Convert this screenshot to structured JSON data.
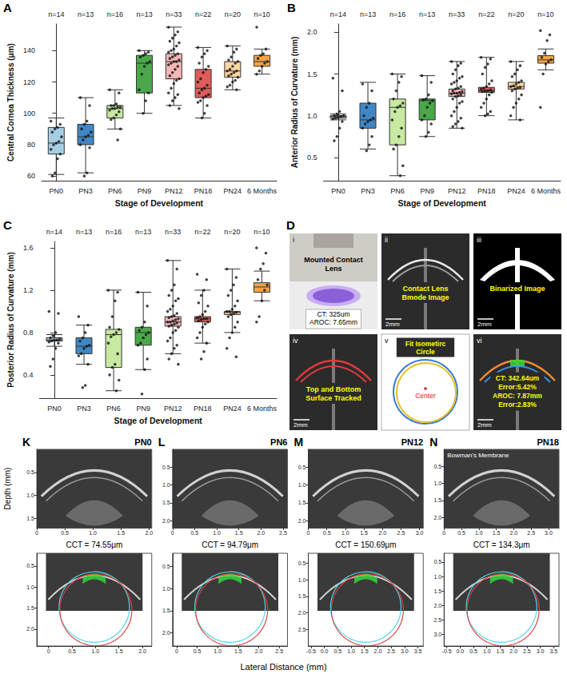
{
  "chart_data": [
    {
      "type": "boxplot",
      "panel": "A",
      "x_label": "Stage of Development",
      "y_label": "Central Cornea Thickness (μm)",
      "categories": [
        "PN0",
        "PN3",
        "PN6",
        "PN9",
        "PN12",
        "PN18",
        "PN24",
        "6 Months"
      ],
      "n_labels": [
        "n=14",
        "n=13",
        "n=16",
        "n=13",
        "n=33",
        "n=22",
        "n=20",
        "n=10"
      ],
      "colors": [
        "#a6cee3",
        "#3f87c4",
        "#c7e9a0",
        "#4aa84a",
        "#f7b6b6",
        "#e25b5b",
        "#fdd7a0",
        "#f5a343"
      ],
      "boxes": [
        [
          61,
          74,
          81,
          91,
          97
        ],
        [
          62,
          80,
          85,
          93,
          110
        ],
        [
          90,
          97,
          103,
          105,
          115
        ],
        [
          100,
          113,
          132,
          137,
          140
        ],
        [
          105,
          122,
          133,
          138,
          155
        ],
        [
          97,
          110,
          116,
          128,
          142
        ],
        [
          115,
          123,
          127,
          133,
          143
        ],
        [
          125,
          130,
          133,
          137,
          141
        ]
      ],
      "points": [
        [
          95,
          93,
          91,
          90,
          88,
          85,
          82,
          81,
          80,
          77,
          74,
          71,
          62,
          60
        ],
        [
          110,
          105,
          95,
          93,
          90,
          88,
          86,
          85,
          83,
          80,
          78,
          62,
          60
        ],
        [
          115,
          113,
          106,
          105,
          105,
          104,
          104,
          103,
          103,
          102,
          101,
          99,
          97,
          96,
          90,
          83
        ],
        [
          140,
          139,
          138,
          137,
          136,
          133,
          132,
          130,
          125,
          115,
          113,
          108,
          100
        ],
        [
          155,
          152,
          150,
          148,
          146,
          145,
          143,
          141,
          140,
          139,
          138,
          137,
          136,
          135,
          134,
          133,
          133,
          132,
          131,
          130,
          128,
          126,
          124,
          122,
          121,
          119,
          116,
          113,
          112,
          110,
          108,
          105,
          103
        ],
        [
          142,
          140,
          138,
          136,
          132,
          130,
          128,
          126,
          122,
          120,
          118,
          116,
          115,
          113,
          112,
          111,
          110,
          108,
          107,
          105,
          100,
          97
        ],
        [
          143,
          141,
          139,
          136,
          134,
          133,
          132,
          130,
          128,
          127,
          127,
          126,
          125,
          124,
          123,
          121,
          120,
          118,
          117,
          115
        ],
        [
          155,
          141,
          138,
          137,
          135,
          133,
          132,
          130,
          127,
          125
        ]
      ],
      "ylim": [
        57,
        157
      ],
      "yticks": [
        60,
        80,
        100,
        120,
        140
      ],
      "grid": false
    },
    {
      "type": "boxplot",
      "panel": "B",
      "x_label": "Stage of Development",
      "y_label": "Anterior Radius of Curvature (mm)",
      "categories": [
        "PN0",
        "PN3",
        "PN6",
        "PN9",
        "PN12",
        "PN18",
        "PN24",
        "6 Months"
      ],
      "n_labels": [
        "n=14",
        "n=13",
        "n=16",
        "n=13",
        "n=33",
        "n=22",
        "n=20",
        "n=10"
      ],
      "colors": [
        "#a6cee3",
        "#3f87c4",
        "#c7e9a0",
        "#4aa84a",
        "#f7b6b6",
        "#e25b5b",
        "#fdd7a0",
        "#f5a343"
      ],
      "boxes": [
        [
          0.95,
          0.97,
          0.99,
          1.0,
          1.02
        ],
        [
          0.6,
          0.85,
          0.95,
          1.15,
          1.4
        ],
        [
          0.28,
          0.65,
          1.1,
          1.2,
          1.5
        ],
        [
          0.75,
          0.95,
          1.18,
          1.2,
          1.48
        ],
        [
          0.85,
          1.23,
          1.27,
          1.32,
          1.65
        ],
        [
          1.0,
          1.28,
          1.3,
          1.34,
          1.7
        ],
        [
          0.95,
          1.32,
          1.35,
          1.4,
          1.65
        ],
        [
          1.55,
          1.63,
          1.67,
          1.72,
          1.8
        ]
      ],
      "points": [
        [
          1.45,
          1.3,
          1.05,
          1.02,
          1.0,
          1.0,
          0.99,
          0.98,
          0.97,
          0.96,
          0.93,
          0.85,
          0.75,
          0.7
        ],
        [
          1.38,
          1.3,
          1.15,
          1.1,
          1.0,
          0.97,
          0.95,
          0.93,
          0.9,
          0.85,
          0.75,
          0.65,
          0.58
        ],
        [
          1.5,
          1.47,
          1.4,
          1.3,
          1.2,
          1.15,
          1.12,
          1.1,
          1.05,
          0.95,
          0.85,
          0.75,
          0.65,
          0.6,
          0.4,
          0.28
        ],
        [
          1.48,
          1.4,
          1.25,
          1.2,
          1.19,
          1.18,
          1.15,
          1.1,
          1.0,
          0.95,
          0.9,
          0.8,
          0.75
        ],
        [
          1.65,
          1.63,
          1.6,
          1.55,
          1.5,
          1.47,
          1.45,
          1.42,
          1.4,
          1.38,
          1.35,
          1.33,
          1.32,
          1.3,
          1.29,
          1.28,
          1.27,
          1.27,
          1.26,
          1.25,
          1.24,
          1.23,
          1.2,
          1.17,
          1.15,
          1.1,
          1.05,
          1.0,
          0.97,
          0.93,
          0.9,
          0.87,
          0.85
        ],
        [
          1.7,
          1.68,
          1.62,
          1.58,
          1.5,
          1.42,
          1.38,
          1.35,
          1.33,
          1.32,
          1.31,
          1.3,
          1.3,
          1.29,
          1.28,
          1.25,
          1.2,
          1.15,
          1.1,
          1.05,
          1.02,
          1.0
        ],
        [
          1.65,
          1.6,
          1.55,
          1.5,
          1.47,
          1.42,
          1.4,
          1.38,
          1.36,
          1.35,
          1.34,
          1.33,
          1.32,
          1.3,
          1.25,
          1.2,
          1.15,
          1.1,
          1.0,
          0.95
        ],
        [
          2.02,
          1.97,
          1.9,
          1.75,
          1.7,
          1.67,
          1.65,
          1.62,
          1.5,
          1.1
        ]
      ],
      "ylim": [
        0.22,
        2.1
      ],
      "yticks": [
        0.5,
        {
          "value": 1,
          "label": "1.0"
        },
        1.5,
        {
          "value": 2,
          "label": "2.0"
        }
      ],
      "grid": false
    },
    {
      "type": "boxplot",
      "panel": "C",
      "x_label": "Stage of Development",
      "y_label": "Posterior Radius of Curvature (mm)",
      "categories": [
        "PN0",
        "PN3",
        "PN6",
        "PN9",
        "PN12",
        "PN18",
        "PN24",
        "6 Months"
      ],
      "n_labels": [
        "n=14",
        "n=13",
        "n=16",
        "n=13",
        "n=33",
        "n=22",
        "n=20",
        "n=10"
      ],
      "colors": [
        "#a6cee3",
        "#3f87c4",
        "#c7e9a0",
        "#4aa84a",
        "#f7b6b6",
        "#e25b5b",
        "#fdd7a0",
        "#f5a343"
      ],
      "boxes": [
        [
          0.67,
          0.72,
          0.73,
          0.75,
          0.78
        ],
        [
          0.5,
          0.6,
          0.67,
          0.75,
          0.87
        ],
        [
          0.25,
          0.47,
          0.78,
          0.83,
          1.2
        ],
        [
          0.45,
          0.68,
          0.8,
          0.85,
          1.18
        ],
        [
          0.6,
          0.86,
          0.9,
          0.95,
          1.48
        ],
        [
          0.7,
          0.9,
          0.93,
          0.95,
          1.2
        ],
        [
          0.8,
          0.97,
          0.99,
          1.0,
          1.4
        ],
        [
          1.1,
          1.18,
          1.23,
          1.27,
          1.38
        ]
      ],
      "points": [
        [
          1.0,
          0.98,
          0.8,
          0.77,
          0.75,
          0.74,
          0.73,
          0.73,
          0.72,
          0.71,
          0.7,
          0.65,
          0.55,
          0.48
        ],
        [
          0.95,
          0.87,
          0.8,
          0.75,
          0.72,
          0.68,
          0.67,
          0.65,
          0.6,
          0.58,
          0.5,
          0.3,
          0.28
        ],
        [
          1.2,
          1.18,
          1.1,
          0.95,
          0.85,
          0.83,
          0.8,
          0.78,
          0.76,
          0.7,
          0.6,
          0.5,
          0.47,
          0.4,
          0.35,
          0.25
        ],
        [
          1.18,
          1.05,
          0.9,
          0.85,
          0.82,
          0.8,
          0.78,
          0.75,
          0.7,
          0.68,
          0.55,
          0.45,
          0.22
        ],
        [
          1.48,
          1.4,
          1.25,
          1.2,
          1.15,
          1.12,
          1.1,
          1.05,
          1.02,
          1.0,
          0.98,
          0.96,
          0.95,
          0.94,
          0.93,
          0.92,
          0.91,
          0.9,
          0.9,
          0.89,
          0.88,
          0.87,
          0.86,
          0.85,
          0.82,
          0.8,
          0.75,
          0.72,
          0.68,
          0.65,
          0.6,
          0.55,
          0.5
        ],
        [
          1.35,
          1.3,
          1.2,
          1.15,
          1.08,
          1.05,
          1.0,
          0.97,
          0.95,
          0.94,
          0.93,
          0.93,
          0.92,
          0.91,
          0.9,
          0.88,
          0.85,
          0.8,
          0.75,
          0.7,
          0.62,
          0.55
        ],
        [
          1.4,
          1.32,
          1.25,
          1.2,
          1.15,
          1.1,
          1.05,
          1.02,
          1.0,
          1.0,
          0.99,
          0.98,
          0.97,
          0.95,
          0.9,
          0.85,
          0.8,
          0.75,
          0.65,
          0.57
        ],
        [
          1.6,
          1.55,
          1.45,
          1.4,
          1.3,
          1.25,
          1.2,
          1.1,
          0.95,
          0.9
        ]
      ],
      "ylim": [
        0.18,
        1.66
      ],
      "yticks": [
        0.4,
        0.8,
        1.2,
        1.6
      ],
      "grid": false
    }
  ],
  "panel_d": {
    "letter": "D",
    "cells": [
      {
        "id": "i",
        "caption": "Mounted Contact Lens",
        "measure": [
          "CT: 325um",
          "AROC: 7.65mm"
        ]
      },
      {
        "id": "ii",
        "caption": "Contact Lens Bmode Image",
        "scale": "2mm"
      },
      {
        "id": "iii",
        "caption": "Binarized Image",
        "scale": "2mm"
      },
      {
        "id": "iv",
        "caption": "Top and Bottom Surface Tracked",
        "scale": "2mm"
      },
      {
        "id": "v",
        "caption": "Fit Isometirc Circle",
        "center_label": "Center"
      },
      {
        "id": "vi",
        "measure": [
          "CT: 342.64um",
          "Error:5.42%",
          "AROC: 7.87mm",
          "Error:2.83%"
        ],
        "scale": "2mm"
      }
    ]
  },
  "oct_figure": {
    "y_title": "Depth (mm)",
    "x_title": "Lateral Distance (mm)",
    "panels": [
      {
        "letter": "K",
        "stage": "PN0",
        "cct": "CCT = 74.55μm",
        "top": {
          "xlim": [
            0,
            2.05
          ],
          "xticks": [
            0,
            0.5,
            {
              "value": 1,
              "label": "1.0"
            },
            1.5,
            {
              "value": 2,
              "label": "2.0"
            }
          ],
          "ylim": [
            0,
            1.7
          ],
          "yticks": [
            0.5,
            {
              "value": 1,
              "label": "1.0"
            },
            1.5
          ]
        },
        "bottom": {
          "xlim": [
            -0.25,
            2.2
          ],
          "xticks": [
            0,
            0.5,
            {
              "value": 1,
              "label": "1.0"
            },
            1.5,
            {
              "value": 2,
              "label": "2.0"
            }
          ],
          "ylim": [
            0.2,
            2.4
          ],
          "yticks": [
            0.5,
            {
              "value": 1,
              "label": "1.0"
            },
            1.5,
            {
              "value": 2,
              "label": "2.0"
            }
          ]
        }
      },
      {
        "letter": "L",
        "stage": "PN6",
        "cct": "CCT = 94.79μm",
        "top": {
          "xlim": [
            0,
            2.6
          ],
          "xticks": [
            0,
            0.5,
            {
              "value": 1,
              "label": "1.0"
            },
            1.5,
            {
              "value": 2,
              "label": "2.0"
            },
            2.5
          ],
          "ylim": [
            0,
            2.2
          ],
          "yticks": [
            0.5,
            {
              "value": 1,
              "label": "1.0"
            },
            1.5,
            {
              "value": 2,
              "label": "2.0"
            }
          ]
        },
        "bottom": {
          "xlim": [
            -0.1,
            2.7
          ],
          "xticks": [
            0,
            0.5,
            {
              "value": 1,
              "label": "1.0"
            },
            1.5,
            {
              "value": 2,
              "label": "2.0"
            },
            2.5
          ],
          "ylim": [
            0.2,
            2.3
          ],
          "yticks": [
            0.5,
            {
              "value": 1,
              "label": "1.0"
            },
            1.5,
            {
              "value": 2,
              "label": "2.0"
            }
          ]
        }
      },
      {
        "letter": "M",
        "stage": "PN12",
        "cct": "CCT = 150.69μm",
        "top": {
          "xlim": [
            0,
            3.1
          ],
          "xticks": [
            0,
            0.5,
            {
              "value": 1,
              "label": "1.0"
            },
            1.5,
            {
              "value": 2,
              "label": "2.0"
            },
            2.5,
            {
              "value": 3,
              "label": "3.0"
            }
          ],
          "ylim": [
            0,
            2.2
          ],
          "yticks": [
            0.5,
            {
              "value": 1,
              "label": "1.0"
            },
            1.5,
            {
              "value": 2,
              "label": "2.0"
            }
          ]
        },
        "bottom": {
          "xlim": [
            -0.6,
            3.7
          ],
          "xticks": [
            -0.5,
            {
              "value": 0,
              "label": "0.0"
            },
            0.5,
            {
              "value": 1,
              "label": "1.0"
            },
            1.5,
            {
              "value": 2,
              "label": "2.0"
            },
            2.5,
            {
              "value": 3,
              "label": "3.0"
            },
            3.5
          ],
          "ylim": [
            0.2,
            3.0
          ],
          "yticks": [
            0.5,
            {
              "value": 1,
              "label": "1.0"
            },
            1.5,
            {
              "value": 2,
              "label": "2.0"
            },
            2.5
          ]
        }
      },
      {
        "letter": "N",
        "stage": "PN18",
        "cct": "CCT = 134.3μm",
        "annotation": "Bowman's Membrane",
        "top": {
          "xlim": [
            0,
            3.3
          ],
          "xticks": [
            0,
            0.5,
            {
              "value": 1,
              "label": "1.0"
            },
            1.5,
            {
              "value": 2,
              "label": "2.0"
            },
            2.5,
            {
              "value": 3,
              "label": "3.0"
            }
          ],
          "ylim": [
            0,
            2.3
          ],
          "yticks": [
            0.5,
            {
              "value": 1,
              "label": "1.0"
            },
            1.5,
            {
              "value": 2,
              "label": "2.0"
            }
          ]
        },
        "bottom": {
          "xlim": [
            -0.6,
            3.7
          ],
          "xticks": [
            -0.5,
            {
              "value": 0,
              "label": "0.0"
            },
            0.5,
            {
              "value": 1,
              "label": "1.0"
            },
            1.5,
            {
              "value": 2,
              "label": "2.0"
            },
            2.5,
            {
              "value": 3,
              "label": "3.0"
            },
            3.5
          ],
          "ylim": [
            0.2,
            3.4
          ],
          "yticks": [
            0.5,
            {
              "value": 1,
              "label": "1.0"
            },
            1.5,
            {
              "value": 2,
              "label": "2.0"
            },
            2.5,
            {
              "value": 3,
              "label": "3.0"
            }
          ]
        }
      }
    ]
  }
}
